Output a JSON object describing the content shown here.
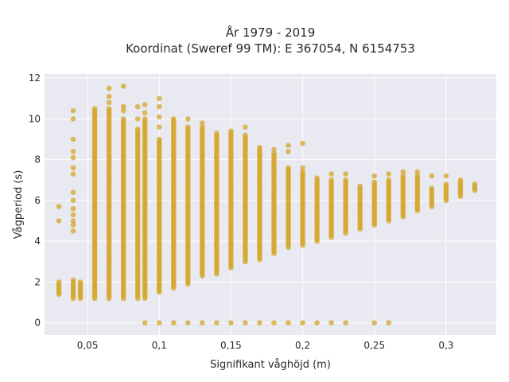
{
  "chart_data": {
    "type": "scatter",
    "title_line1": "År 1979 - 2019",
    "title_line2": "Koordinat (Sweref 99 TM): E 367054, N 6154753",
    "xlabel": "Signifikant våghöjd (m)",
    "ylabel": "Vågperiod (s)",
    "xlim": [
      0.02,
      0.335
    ],
    "ylim": [
      -0.6,
      12.2
    ],
    "xticks": [
      0.05,
      0.1,
      0.15,
      0.2,
      0.25,
      0.3
    ],
    "xtick_labels": [
      "0,05",
      "0,1",
      "0,15",
      "0,2",
      "0,25",
      "0,3"
    ],
    "yticks": [
      0,
      2,
      4,
      6,
      8,
      10,
      12
    ],
    "ytick_labels": [
      "0",
      "2",
      "4",
      "6",
      "8",
      "10",
      "12"
    ],
    "grid": true,
    "legend": false,
    "marker_color": "#d4a52a",
    "plot_background": "#e9e9f1",
    "columns": [
      {
        "x": 0.03,
        "ymin": 1.4,
        "ymax": 2.0,
        "outliers": [
          5.0,
          5.7
        ]
      },
      {
        "x": 0.04,
        "ymin": 1.2,
        "ymax": 2.1,
        "outliers": [
          4.5,
          4.8,
          5.0,
          5.3,
          5.6,
          6.0,
          6.4,
          7.3,
          7.6,
          8.1,
          8.4,
          9.0,
          10.0,
          10.4
        ]
      },
      {
        "x": 0.045,
        "ymin": 1.2,
        "ymax": 2.0,
        "outliers": []
      },
      {
        "x": 0.055,
        "ymin": 1.2,
        "ymax": 10.5,
        "outliers": []
      },
      {
        "x": 0.065,
        "ymin": 1.2,
        "ymax": 10.5,
        "outliers": [
          10.8,
          11.1,
          11.5
        ]
      },
      {
        "x": 0.075,
        "ymin": 1.2,
        "ymax": 10.0,
        "outliers": [
          10.4,
          10.6,
          11.6
        ]
      },
      {
        "x": 0.085,
        "ymin": 1.2,
        "ymax": 9.5,
        "outliers": [
          10.0,
          10.6
        ]
      },
      {
        "x": 0.09,
        "ymin": 1.2,
        "ymax": 10.0,
        "outliers": [
          10.3,
          10.7
        ]
      },
      {
        "x": 0.1,
        "ymin": 1.5,
        "ymax": 9.0,
        "outliers": [
          9.6,
          10.1,
          10.6,
          11.0
        ]
      },
      {
        "x": 0.11,
        "ymin": 1.7,
        "ymax": 10.0,
        "outliers": []
      },
      {
        "x": 0.12,
        "ymin": 1.9,
        "ymax": 9.6,
        "outliers": [
          10.0
        ]
      },
      {
        "x": 0.13,
        "ymin": 2.3,
        "ymax": 9.6,
        "outliers": [
          9.8
        ]
      },
      {
        "x": 0.14,
        "ymin": 2.4,
        "ymax": 9.3,
        "outliers": []
      },
      {
        "x": 0.15,
        "ymin": 2.7,
        "ymax": 9.4,
        "outliers": []
      },
      {
        "x": 0.16,
        "ymin": 3.0,
        "ymax": 9.2,
        "outliers": [
          9.6
        ]
      },
      {
        "x": 0.17,
        "ymin": 3.1,
        "ymax": 8.6,
        "outliers": []
      },
      {
        "x": 0.18,
        "ymin": 3.4,
        "ymax": 8.3,
        "outliers": [
          8.5
        ]
      },
      {
        "x": 0.19,
        "ymin": 3.7,
        "ymax": 7.6,
        "outliers": [
          8.4,
          8.7
        ]
      },
      {
        "x": 0.2,
        "ymin": 3.8,
        "ymax": 7.4,
        "outliers": [
          7.6,
          8.8
        ]
      },
      {
        "x": 0.21,
        "ymin": 4.0,
        "ymax": 7.0,
        "outliers": [
          7.1
        ]
      },
      {
        "x": 0.22,
        "ymin": 4.2,
        "ymax": 7.0,
        "outliers": [
          7.3
        ]
      },
      {
        "x": 0.23,
        "ymin": 4.4,
        "ymax": 7.0,
        "outliers": [
          7.3
        ]
      },
      {
        "x": 0.24,
        "ymin": 4.6,
        "ymax": 6.7,
        "outliers": []
      },
      {
        "x": 0.25,
        "ymin": 4.8,
        "ymax": 6.9,
        "outliers": [
          7.2
        ]
      },
      {
        "x": 0.26,
        "ymin": 5.0,
        "ymax": 7.0,
        "outliers": [
          7.3
        ]
      },
      {
        "x": 0.27,
        "ymin": 5.2,
        "ymax": 7.2,
        "outliers": [
          7.4
        ]
      },
      {
        "x": 0.28,
        "ymin": 5.5,
        "ymax": 7.2,
        "outliers": [
          7.4
        ]
      },
      {
        "x": 0.29,
        "ymin": 5.7,
        "ymax": 6.6,
        "outliers": [
          7.2
        ]
      },
      {
        "x": 0.3,
        "ymin": 6.0,
        "ymax": 6.8,
        "outliers": [
          7.2
        ]
      },
      {
        "x": 0.31,
        "ymin": 6.2,
        "ymax": 7.0,
        "outliers": []
      },
      {
        "x": 0.32,
        "ymin": 6.5,
        "ymax": 6.8,
        "outliers": []
      }
    ],
    "zero_row": {
      "y": 0,
      "x": [
        0.09,
        0.1,
        0.11,
        0.12,
        0.13,
        0.14,
        0.15,
        0.16,
        0.17,
        0.18,
        0.19,
        0.2,
        0.21,
        0.22,
        0.23,
        0.25,
        0.26
      ]
    }
  }
}
